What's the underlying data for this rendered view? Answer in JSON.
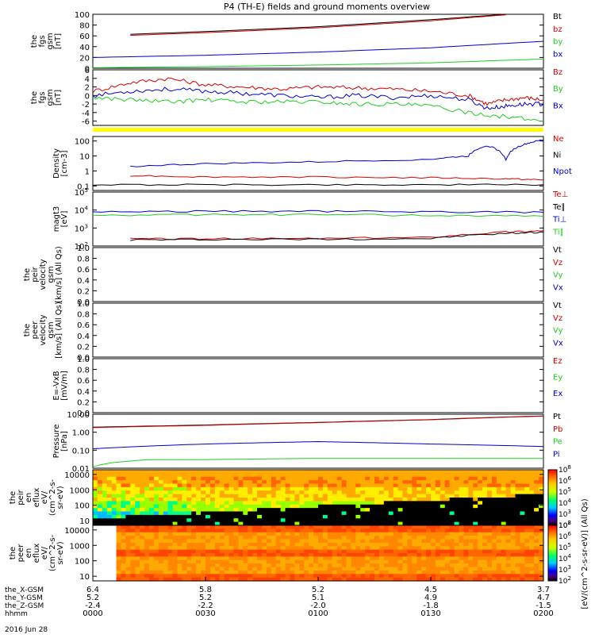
{
  "title": "P4 (TH-E) fields and ground moments overview",
  "date_label": "2016 Jun 28",
  "colors": {
    "black": "#000000",
    "red": "#d40000",
    "green": "#22cc22",
    "blue": "#0000cc",
    "yellow": "#ffff00"
  },
  "chart_data": [
    {
      "type": "line",
      "ylabel": [
        "the",
        "fgs",
        "gsm",
        "[nT]"
      ],
      "ylim": [
        0,
        100
      ],
      "yticks": [
        "0",
        "20",
        "40",
        "60",
        "80",
        "100"
      ],
      "legend": [
        {
          "name": "Bt",
          "color": "black"
        },
        {
          "name": "bz",
          "color": "red"
        },
        {
          "name": "by",
          "color": "green"
        },
        {
          "name": "bx",
          "color": "blue"
        }
      ],
      "series": [
        {
          "name": "Bt",
          "color": "black",
          "x": [
            10,
            30,
            60,
            90,
            110,
            120
          ],
          "y": [
            63,
            68,
            77,
            90,
            100,
            104
          ]
        },
        {
          "name": "bz",
          "color": "red",
          "x": [
            10,
            30,
            60,
            90,
            110
          ],
          "y": [
            61,
            66,
            75,
            88,
            99
          ]
        },
        {
          "name": "bx",
          "color": "blue",
          "x": [
            0,
            30,
            60,
            90,
            120
          ],
          "y": [
            20,
            24,
            30,
            38,
            50
          ]
        },
        {
          "name": "by",
          "color": "green",
          "x": [
            0,
            30,
            60,
            90,
            120
          ],
          "y": [
            1,
            3,
            6,
            10,
            17
          ]
        }
      ]
    },
    {
      "type": "line",
      "ylabel": [
        "the",
        "fgs",
        "gsm",
        "[nT]"
      ],
      "ylim": [
        -7,
        6
      ],
      "yticks": [
        "-6",
        "-4",
        "-2",
        "0",
        "2",
        "4",
        "6"
      ],
      "legend": [
        {
          "name": "Bz",
          "color": "red"
        },
        {
          "name": "By",
          "color": "green"
        },
        {
          "name": "Bx",
          "color": "blue"
        }
      ],
      "series": [
        {
          "name": "Bz",
          "color": "red",
          "x": [
            0,
            10,
            20,
            30,
            40,
            50,
            60,
            70,
            80,
            90,
            100,
            105,
            110,
            115,
            120
          ],
          "y": [
            1,
            3,
            4,
            2.5,
            2,
            1.5,
            2,
            1.8,
            1.5,
            1,
            0,
            -2,
            -1,
            -0.5,
            -1
          ]
        },
        {
          "name": "Bx",
          "color": "blue",
          "x": [
            0,
            10,
            20,
            30,
            40,
            50,
            60,
            70,
            80,
            90,
            100,
            105,
            110,
            115,
            120
          ],
          "y": [
            0,
            1,
            1.5,
            1,
            0.5,
            0,
            -0.5,
            0,
            -0.5,
            0,
            -1,
            -3,
            -2.5,
            -2,
            -2
          ]
        },
        {
          "name": "By",
          "color": "green",
          "x": [
            0,
            10,
            20,
            30,
            40,
            50,
            60,
            70,
            80,
            90,
            100,
            110,
            120
          ],
          "y": [
            -0.5,
            -1,
            -1.5,
            -1,
            -1.5,
            -1.5,
            -1.5,
            -2,
            -2,
            -2.5,
            -4,
            -5,
            -6
          ]
        }
      ]
    },
    {
      "type": "line",
      "ylabel": [
        "Density",
        "[cm-3]"
      ],
      "ylim": [
        0.05,
        200
      ],
      "log": true,
      "yticks": [
        "0.1",
        "1",
        "10",
        "100"
      ],
      "legend": [
        {
          "name": "Ne",
          "color": "red"
        },
        {
          "name": "Ni",
          "color": "black"
        },
        {
          "name": "Npot",
          "color": "blue"
        }
      ],
      "series": [
        {
          "name": "Npot",
          "color": "blue",
          "x": [
            10,
            30,
            60,
            90,
            100,
            105,
            110,
            115,
            120
          ],
          "y": [
            2,
            3,
            4,
            6,
            10,
            50,
            5,
            60,
            120
          ]
        },
        {
          "name": "Ne",
          "color": "red",
          "x": [
            10,
            30,
            60,
            90,
            110,
            120
          ],
          "y": [
            0.5,
            0.4,
            0.4,
            0.35,
            0.3,
            0.25
          ]
        },
        {
          "name": "Ni",
          "color": "black",
          "x": [
            0,
            30,
            60,
            90,
            120
          ],
          "y": [
            0.12,
            0.12,
            0.12,
            0.12,
            0.12
          ]
        }
      ]
    },
    {
      "type": "line",
      "ylabel": [
        "magt3",
        "[eV]"
      ],
      "ylim": [
        100,
        100000
      ],
      "log": true,
      "yticks": [
        "10^2",
        "10^3",
        "10^4",
        "10^5"
      ],
      "legend": [
        {
          "name": "Te⊥",
          "color": "red"
        },
        {
          "name": "Te∥",
          "color": "black"
        },
        {
          "name": "Ti⊥",
          "color": "blue"
        },
        {
          "name": "Ti∥",
          "color": "green"
        }
      ],
      "series": [
        {
          "name": "Ti⊥",
          "color": "blue",
          "x": [
            0,
            30,
            60,
            90,
            120
          ],
          "y": [
            8000,
            8500,
            8500,
            8000,
            7500
          ]
        },
        {
          "name": "Ti∥",
          "color": "green",
          "x": [
            0,
            30,
            60,
            90,
            120
          ],
          "y": [
            5000,
            5500,
            5500,
            5000,
            4500
          ]
        },
        {
          "name": "Te⊥",
          "color": "red",
          "x": [
            10,
            30,
            60,
            90,
            110,
            120
          ],
          "y": [
            250,
            250,
            260,
            300,
            600,
            700
          ]
        },
        {
          "name": "Te∥",
          "color": "black",
          "x": [
            10,
            30,
            60,
            90,
            110,
            120
          ],
          "y": [
            220,
            230,
            240,
            260,
            500,
            600
          ]
        }
      ]
    },
    {
      "type": "line",
      "ylabel": [
        "the",
        "peir",
        "velocity",
        "gsm",
        "[km/s] (All Qs)"
      ],
      "ylim": [
        0,
        1
      ],
      "yticks": [
        "0.0",
        "0.2",
        "0.4",
        "0.6",
        "0.8",
        "1.0"
      ],
      "legend": [
        {
          "name": "Vt",
          "color": "black"
        },
        {
          "name": "Vz",
          "color": "red"
        },
        {
          "name": "Vy",
          "color": "green"
        },
        {
          "name": "Vx",
          "color": "blue"
        }
      ],
      "series": []
    },
    {
      "type": "line",
      "ylabel": [
        "the",
        "peer",
        "velocity",
        "gsm",
        "[km/s] (All Qs)"
      ],
      "ylim": [
        0,
        1
      ],
      "yticks": [
        "0.0",
        "0.2",
        "0.4",
        "0.6",
        "0.8",
        "1.0"
      ],
      "legend": [
        {
          "name": "Vt",
          "color": "black"
        },
        {
          "name": "Vz",
          "color": "red"
        },
        {
          "name": "Vy",
          "color": "green"
        },
        {
          "name": "Vx",
          "color": "blue"
        }
      ],
      "series": []
    },
    {
      "type": "line",
      "ylabel": [
        "E=-VxB",
        "[mV/m]"
      ],
      "ylim": [
        0,
        1
      ],
      "yticks": [
        "0.0",
        "0.2",
        "0.4",
        "0.6",
        "0.8",
        "1.0"
      ],
      "legend": [
        {
          "name": "Ez",
          "color": "red"
        },
        {
          "name": "Ey",
          "color": "green"
        },
        {
          "name": "Ex",
          "color": "blue"
        }
      ],
      "series": []
    },
    {
      "type": "line",
      "ylabel": [
        "Pressure",
        "[nPa]"
      ],
      "ylim": [
        0.01,
        10
      ],
      "log": true,
      "yticks": [
        "0.01",
        "0.10",
        "1.00",
        "10.00"
      ],
      "legend": [
        {
          "name": "Pt",
          "color": "black"
        },
        {
          "name": "Pb",
          "color": "red"
        },
        {
          "name": "Pe",
          "color": "green"
        },
        {
          "name": "Pi",
          "color": "blue"
        }
      ],
      "series": [
        {
          "name": "Pt",
          "color": "black",
          "x": [
            0,
            30,
            60,
            90,
            120
          ],
          "y": [
            1.9,
            2.5,
            3.5,
            5,
            8
          ]
        },
        {
          "name": "Pb",
          "color": "red",
          "x": [
            0,
            30,
            60,
            90,
            120
          ],
          "y": [
            1.8,
            2.4,
            3.4,
            4.9,
            7.8
          ]
        },
        {
          "name": "Pi",
          "color": "blue",
          "x": [
            0,
            30,
            60,
            90,
            120
          ],
          "y": [
            0.12,
            0.22,
            0.3,
            0.22,
            0.16
          ]
        },
        {
          "name": "Pe",
          "color": "green",
          "x": [
            0,
            5,
            15,
            30,
            60,
            90,
            120
          ],
          "y": [
            0.012,
            0.02,
            0.03,
            0.03,
            0.035,
            0.035,
            0.035
          ]
        }
      ]
    },
    {
      "type": "heatmap",
      "ylabel": [
        "the",
        "peir",
        "en",
        "eflux",
        "eV/",
        "(cm^2-s-",
        "sr-eV)"
      ],
      "ylim": [
        5,
        20000
      ],
      "log": true,
      "yticks": [
        "10",
        "100",
        "1000",
        "10000"
      ],
      "colorbar_ticks": [
        "10^2",
        "10^3",
        "10^4",
        "10^5",
        "10^6",
        "10^8"
      ]
    },
    {
      "type": "heatmap",
      "ylabel": [
        "the",
        "peer",
        "en",
        "eflux",
        "eV/",
        "(cm^2-s-",
        "sr-eV)"
      ],
      "ylim": [
        5,
        20000
      ],
      "log": true,
      "yticks": [
        "10",
        "100",
        "1000",
        "10000"
      ],
      "colorbar_ticks": [
        "10^2",
        "10^3",
        "10^4",
        "10^5",
        "10^6",
        "10^8"
      ]
    }
  ],
  "colorbar_label": "[eV/(cm^2-s-sr-eV)] (All Qs)",
  "x_axis": {
    "xlim": [
      0,
      120
    ],
    "rows": [
      {
        "label": "the_X-GSM",
        "values": [
          "6.4",
          "5.8",
          "5.2",
          "4.5",
          "3.7"
        ]
      },
      {
        "label": "the_Y-GSM",
        "values": [
          "5.2",
          "5.2",
          "5.1",
          "4.9",
          "4.7"
        ]
      },
      {
        "label": "the_Z-GSM",
        "values": [
          "-2.4",
          "-2.2",
          "-2.0",
          "-1.8",
          "-1.5"
        ]
      },
      {
        "label": "hhmm",
        "values": [
          "0000",
          "0030",
          "0100",
          "0130",
          "0200"
        ]
      }
    ]
  }
}
